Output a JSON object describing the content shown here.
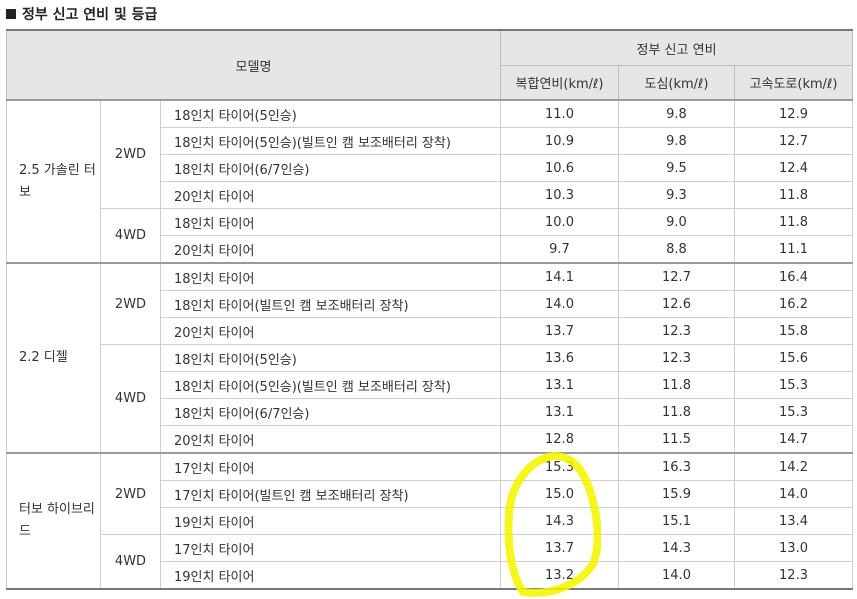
{
  "title": "정부 신고 연비 및 등급",
  "headers": {
    "model": "모델명",
    "efficiency_group": "정부 신고 연비",
    "combined": "복합연비(km/ℓ)",
    "city": "도심(km/ℓ)",
    "highway": "고속도로(km/ℓ)"
  },
  "engines": {
    "gasoline": "2.5 가솔린 터보",
    "diesel": "2.2 디젤",
    "hybrid": "터보 하이브리드"
  },
  "rows": [
    {
      "drive": "2WD",
      "tire": "18인치 타이어(5인승)",
      "combined": "11.0",
      "city": "9.8",
      "highway": "12.9"
    },
    {
      "drive": "2WD",
      "tire": "18인치 타이어(5인승)(빌트인 캠 보조배터리 장착)",
      "combined": "10.9",
      "city": "9.8",
      "highway": "12.7"
    },
    {
      "drive": "2WD",
      "tire": "18인치 타이어(6/7인승)",
      "combined": "10.6",
      "city": "9.5",
      "highway": "12.4"
    },
    {
      "drive": "2WD",
      "tire": "20인치 타이어",
      "combined": "10.3",
      "city": "9.3",
      "highway": "11.8"
    },
    {
      "drive": "4WD",
      "tire": "18인치 타이어",
      "combined": "10.0",
      "city": "9.0",
      "highway": "11.8"
    },
    {
      "drive": "4WD",
      "tire": "20인치 타이어",
      "combined": "9.7",
      "city": "8.8",
      "highway": "11.1"
    },
    {
      "drive": "2WD",
      "tire": "18인치 타이어",
      "combined": "14.1",
      "city": "12.7",
      "highway": "16.4"
    },
    {
      "drive": "2WD",
      "tire": "18인치 타이어(빌트인 캠 보조배터리 장착)",
      "combined": "14.0",
      "city": "12.6",
      "highway": "16.2"
    },
    {
      "drive": "2WD",
      "tire": "20인치 타이어",
      "combined": "13.7",
      "city": "12.3",
      "highway": "15.8"
    },
    {
      "drive": "4WD",
      "tire": "18인치 타이어(5인승)",
      "combined": "13.6",
      "city": "12.3",
      "highway": "15.6"
    },
    {
      "drive": "4WD",
      "tire": "18인치 타이어(5인승)(빌트인 캠 보조배터리 장착)",
      "combined": "13.1",
      "city": "11.8",
      "highway": "15.3"
    },
    {
      "drive": "4WD",
      "tire": "18인치 타이어(6/7인승)",
      "combined": "13.1",
      "city": "11.8",
      "highway": "15.3"
    },
    {
      "drive": "4WD",
      "tire": "20인치 타이어",
      "combined": "12.8",
      "city": "11.5",
      "highway": "14.7"
    },
    {
      "drive": "2WD",
      "tire": "17인치 타이어",
      "combined": "15.3",
      "city": "16.3",
      "highway": "14.2"
    },
    {
      "drive": "2WD",
      "tire": "17인치 타이어(빌트인 캠 보조배터리 장착)",
      "combined": "15.0",
      "city": "15.9",
      "highway": "14.0"
    },
    {
      "drive": "2WD",
      "tire": "19인치 타이어",
      "combined": "14.3",
      "city": "15.1",
      "highway": "13.4"
    },
    {
      "drive": "4WD",
      "tire": "17인치 타이어",
      "combined": "13.7",
      "city": "14.3",
      "highway": "13.0"
    },
    {
      "drive": "4WD",
      "tire": "19인치 타이어",
      "combined": "13.2",
      "city": "14.0",
      "highway": "12.3"
    }
  ],
  "highlight_color": "#f5f500"
}
